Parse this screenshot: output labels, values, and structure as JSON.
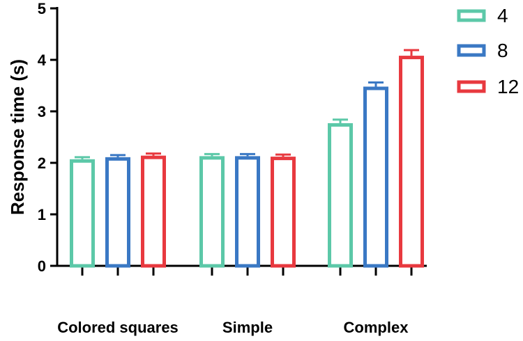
{
  "chart_data": {
    "type": "bar",
    "title": "",
    "xlabel": "",
    "ylabel": "Response time (s)",
    "ylim": [
      0,
      5
    ],
    "yticks": [
      0,
      1,
      2,
      3,
      4,
      5
    ],
    "categories": [
      "Colored squares",
      "Simple",
      "Complex"
    ],
    "legend_position": "top-right",
    "grid": false,
    "series": [
      {
        "name": "4",
        "color": "#5cc8a8",
        "values": [
          2.07,
          2.13,
          2.77
        ],
        "errors": [
          0.04,
          0.04,
          0.07
        ]
      },
      {
        "name": "8",
        "color": "#3a78c4",
        "values": [
          2.11,
          2.13,
          3.48
        ],
        "errors": [
          0.04,
          0.04,
          0.08
        ]
      },
      {
        "name": "12",
        "color": "#e8393f",
        "values": [
          2.14,
          2.12,
          4.08
        ],
        "errors": [
          0.04,
          0.04,
          0.11
        ]
      }
    ]
  }
}
